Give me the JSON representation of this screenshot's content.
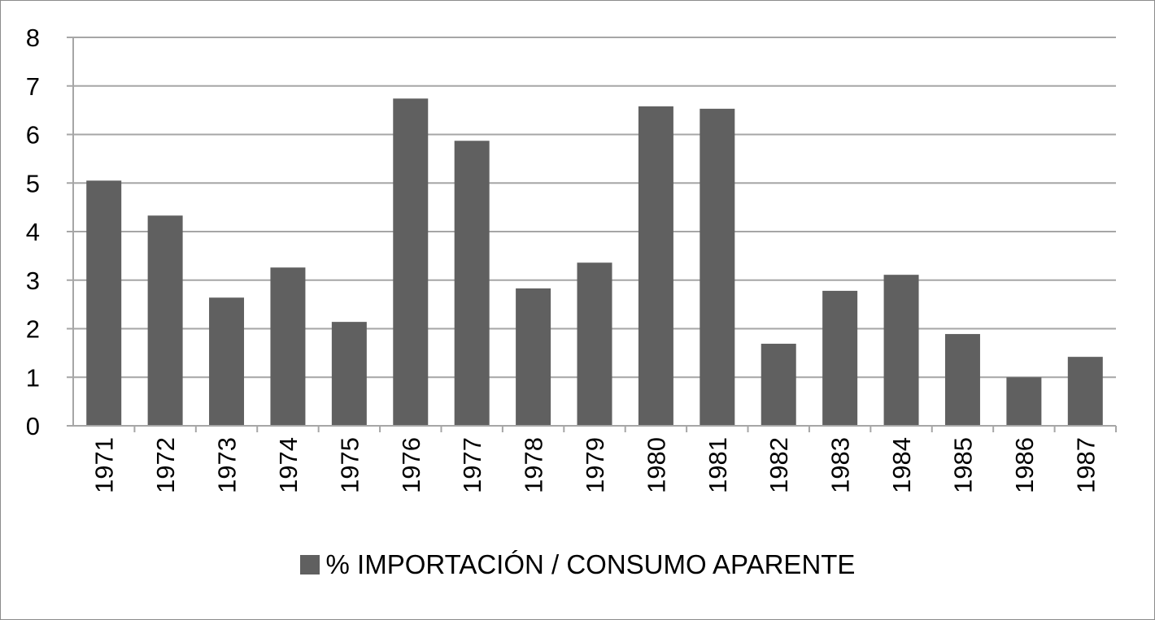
{
  "chart_data": {
    "type": "bar",
    "categories": [
      "1971",
      "1972",
      "1973",
      "1974",
      "1975",
      "1976",
      "1977",
      "1978",
      "1979",
      "1980",
      "1981",
      "1982",
      "1983",
      "1984",
      "1985",
      "1986",
      "1987"
    ],
    "series": [
      {
        "name": "% IMPORTACIÓN / CONSUMO APARENTE",
        "values": [
          5.05,
          4.33,
          2.64,
          3.26,
          2.14,
          6.74,
          5.87,
          2.83,
          3.36,
          6.58,
          6.53,
          1.69,
          2.78,
          3.11,
          1.89,
          1.0,
          1.42
        ],
        "color": "#606060"
      }
    ],
    "ylim": [
      0,
      8
    ],
    "yticks": [
      "0",
      "1",
      "2",
      "3",
      "4",
      "5",
      "6",
      "7",
      "8"
    ],
    "grid": true,
    "legend_position": "bottom",
    "gridline_color": "#a6a6a6"
  }
}
